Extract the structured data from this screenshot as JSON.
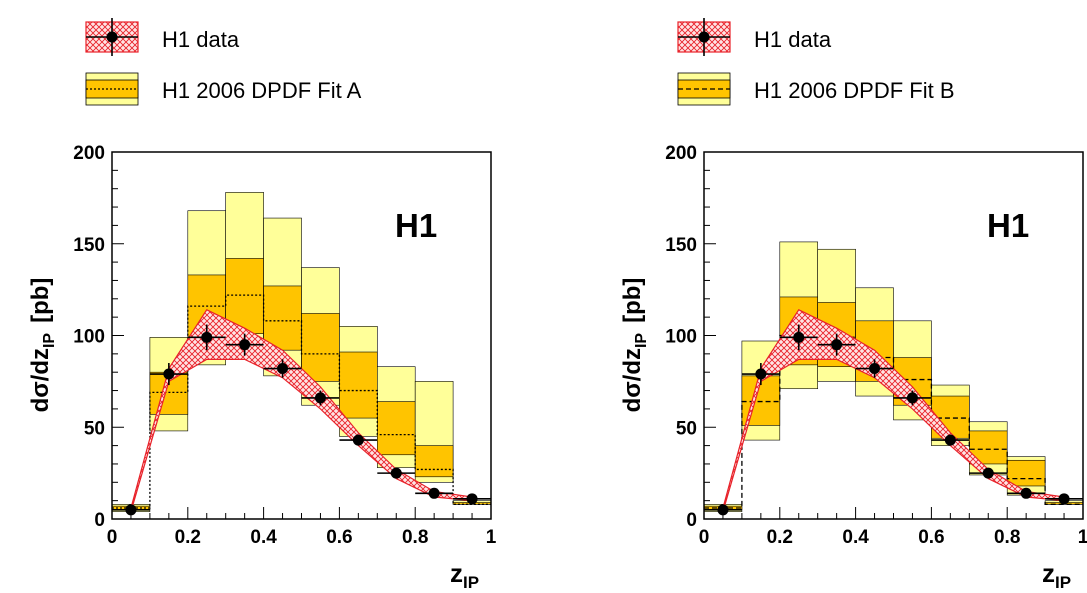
{
  "chart_data": [
    {
      "type": "step-histogram",
      "title": "H1",
      "xlabel": "z",
      "xlabel_sub": "IP",
      "ylabel": "dσ/dz",
      "ylabel_sub": "IP",
      "ylabel_unit": "[pb]",
      "xlim": [
        0,
        1
      ],
      "ylim": [
        0,
        200
      ],
      "x_ticks": [
        "0",
        "0.2",
        "0.4",
        "0.6",
        "0.8",
        "1"
      ],
      "y_ticks": [
        "0",
        "50",
        "100",
        "150",
        "200"
      ],
      "legend": [
        "H1 data",
        "H1 2006 DPDF Fit A"
      ],
      "bin_edges": [
        0,
        0.1,
        0.2,
        0.3,
        0.4,
        0.5,
        0.6,
        0.7,
        0.8,
        0.9,
        1.0
      ],
      "data": {
        "x": [
          0.05,
          0.15,
          0.25,
          0.35,
          0.45,
          0.55,
          0.65,
          0.75,
          0.85,
          0.95
        ],
        "y": [
          5,
          79,
          99,
          95,
          82,
          66,
          43,
          25,
          14,
          11
        ],
        "err": [
          1.5,
          6,
          7,
          6,
          5,
          4,
          3,
          2,
          2,
          2
        ],
        "band_low": [
          4,
          75,
          87,
          87,
          77,
          60,
          40,
          22,
          12,
          10
        ],
        "band_high": [
          6,
          82,
          114,
          104,
          92,
          72,
          47,
          27,
          15,
          12
        ]
      },
      "prediction": {
        "central": [
          6,
          69,
          116,
          122,
          108,
          90,
          70,
          46,
          27,
          8
        ],
        "inner_low": [
          5,
          57,
          99,
          101,
          92,
          75,
          55,
          35,
          23,
          8
        ],
        "inner_high": [
          7,
          80,
          133,
          142,
          127,
          112,
          91,
          64,
          40,
          9
        ],
        "outer_low": [
          4,
          48,
          84,
          89,
          78,
          62,
          45,
          28,
          20,
          8
        ],
        "outer_high": [
          8,
          99,
          168,
          178,
          164,
          137,
          105,
          83,
          75,
          10
        ]
      }
    },
    {
      "type": "step-histogram",
      "title": "H1",
      "xlabel": "z",
      "xlabel_sub": "IP",
      "ylabel": "dσ/dz",
      "ylabel_sub": "IP",
      "ylabel_unit": "[pb]",
      "xlim": [
        0,
        1
      ],
      "ylim": [
        0,
        200
      ],
      "x_ticks": [
        "0",
        "0.2",
        "0.4",
        "0.6",
        "0.8",
        "1"
      ],
      "y_ticks": [
        "0",
        "50",
        "100",
        "150",
        "200"
      ],
      "legend": [
        "H1 data",
        "H1 2006 DPDF Fit B"
      ],
      "bin_edges": [
        0,
        0.1,
        0.2,
        0.3,
        0.4,
        0.5,
        0.6,
        0.7,
        0.8,
        0.9,
        1.0
      ],
      "data": {
        "x": [
          0.05,
          0.15,
          0.25,
          0.35,
          0.45,
          0.55,
          0.65,
          0.75,
          0.85,
          0.95
        ],
        "y": [
          5,
          79,
          99,
          95,
          82,
          66,
          43,
          25,
          14,
          11
        ],
        "err": [
          1.5,
          6,
          7,
          6,
          5,
          4,
          3,
          2,
          2,
          2
        ],
        "band_low": [
          4,
          75,
          87,
          87,
          77,
          60,
          40,
          22,
          12,
          10
        ],
        "band_high": [
          6,
          82,
          114,
          104,
          92,
          72,
          47,
          27,
          15,
          12
        ]
      },
      "prediction": {
        "central": [
          6,
          64,
          100,
          99,
          88,
          76,
          55,
          38,
          22,
          8
        ],
        "inner_low": [
          5,
          51,
          84,
          83,
          75,
          62,
          44,
          30,
          18,
          8
        ],
        "inner_high": [
          7,
          78,
          121,
          118,
          108,
          88,
          67,
          48,
          32,
          9
        ],
        "outer_low": [
          4,
          43,
          71,
          75,
          67,
          54,
          40,
          24,
          13,
          8
        ],
        "outer_high": [
          8,
          97,
          151,
          147,
          126,
          108,
          73,
          53,
          34,
          10
        ]
      }
    }
  ]
}
